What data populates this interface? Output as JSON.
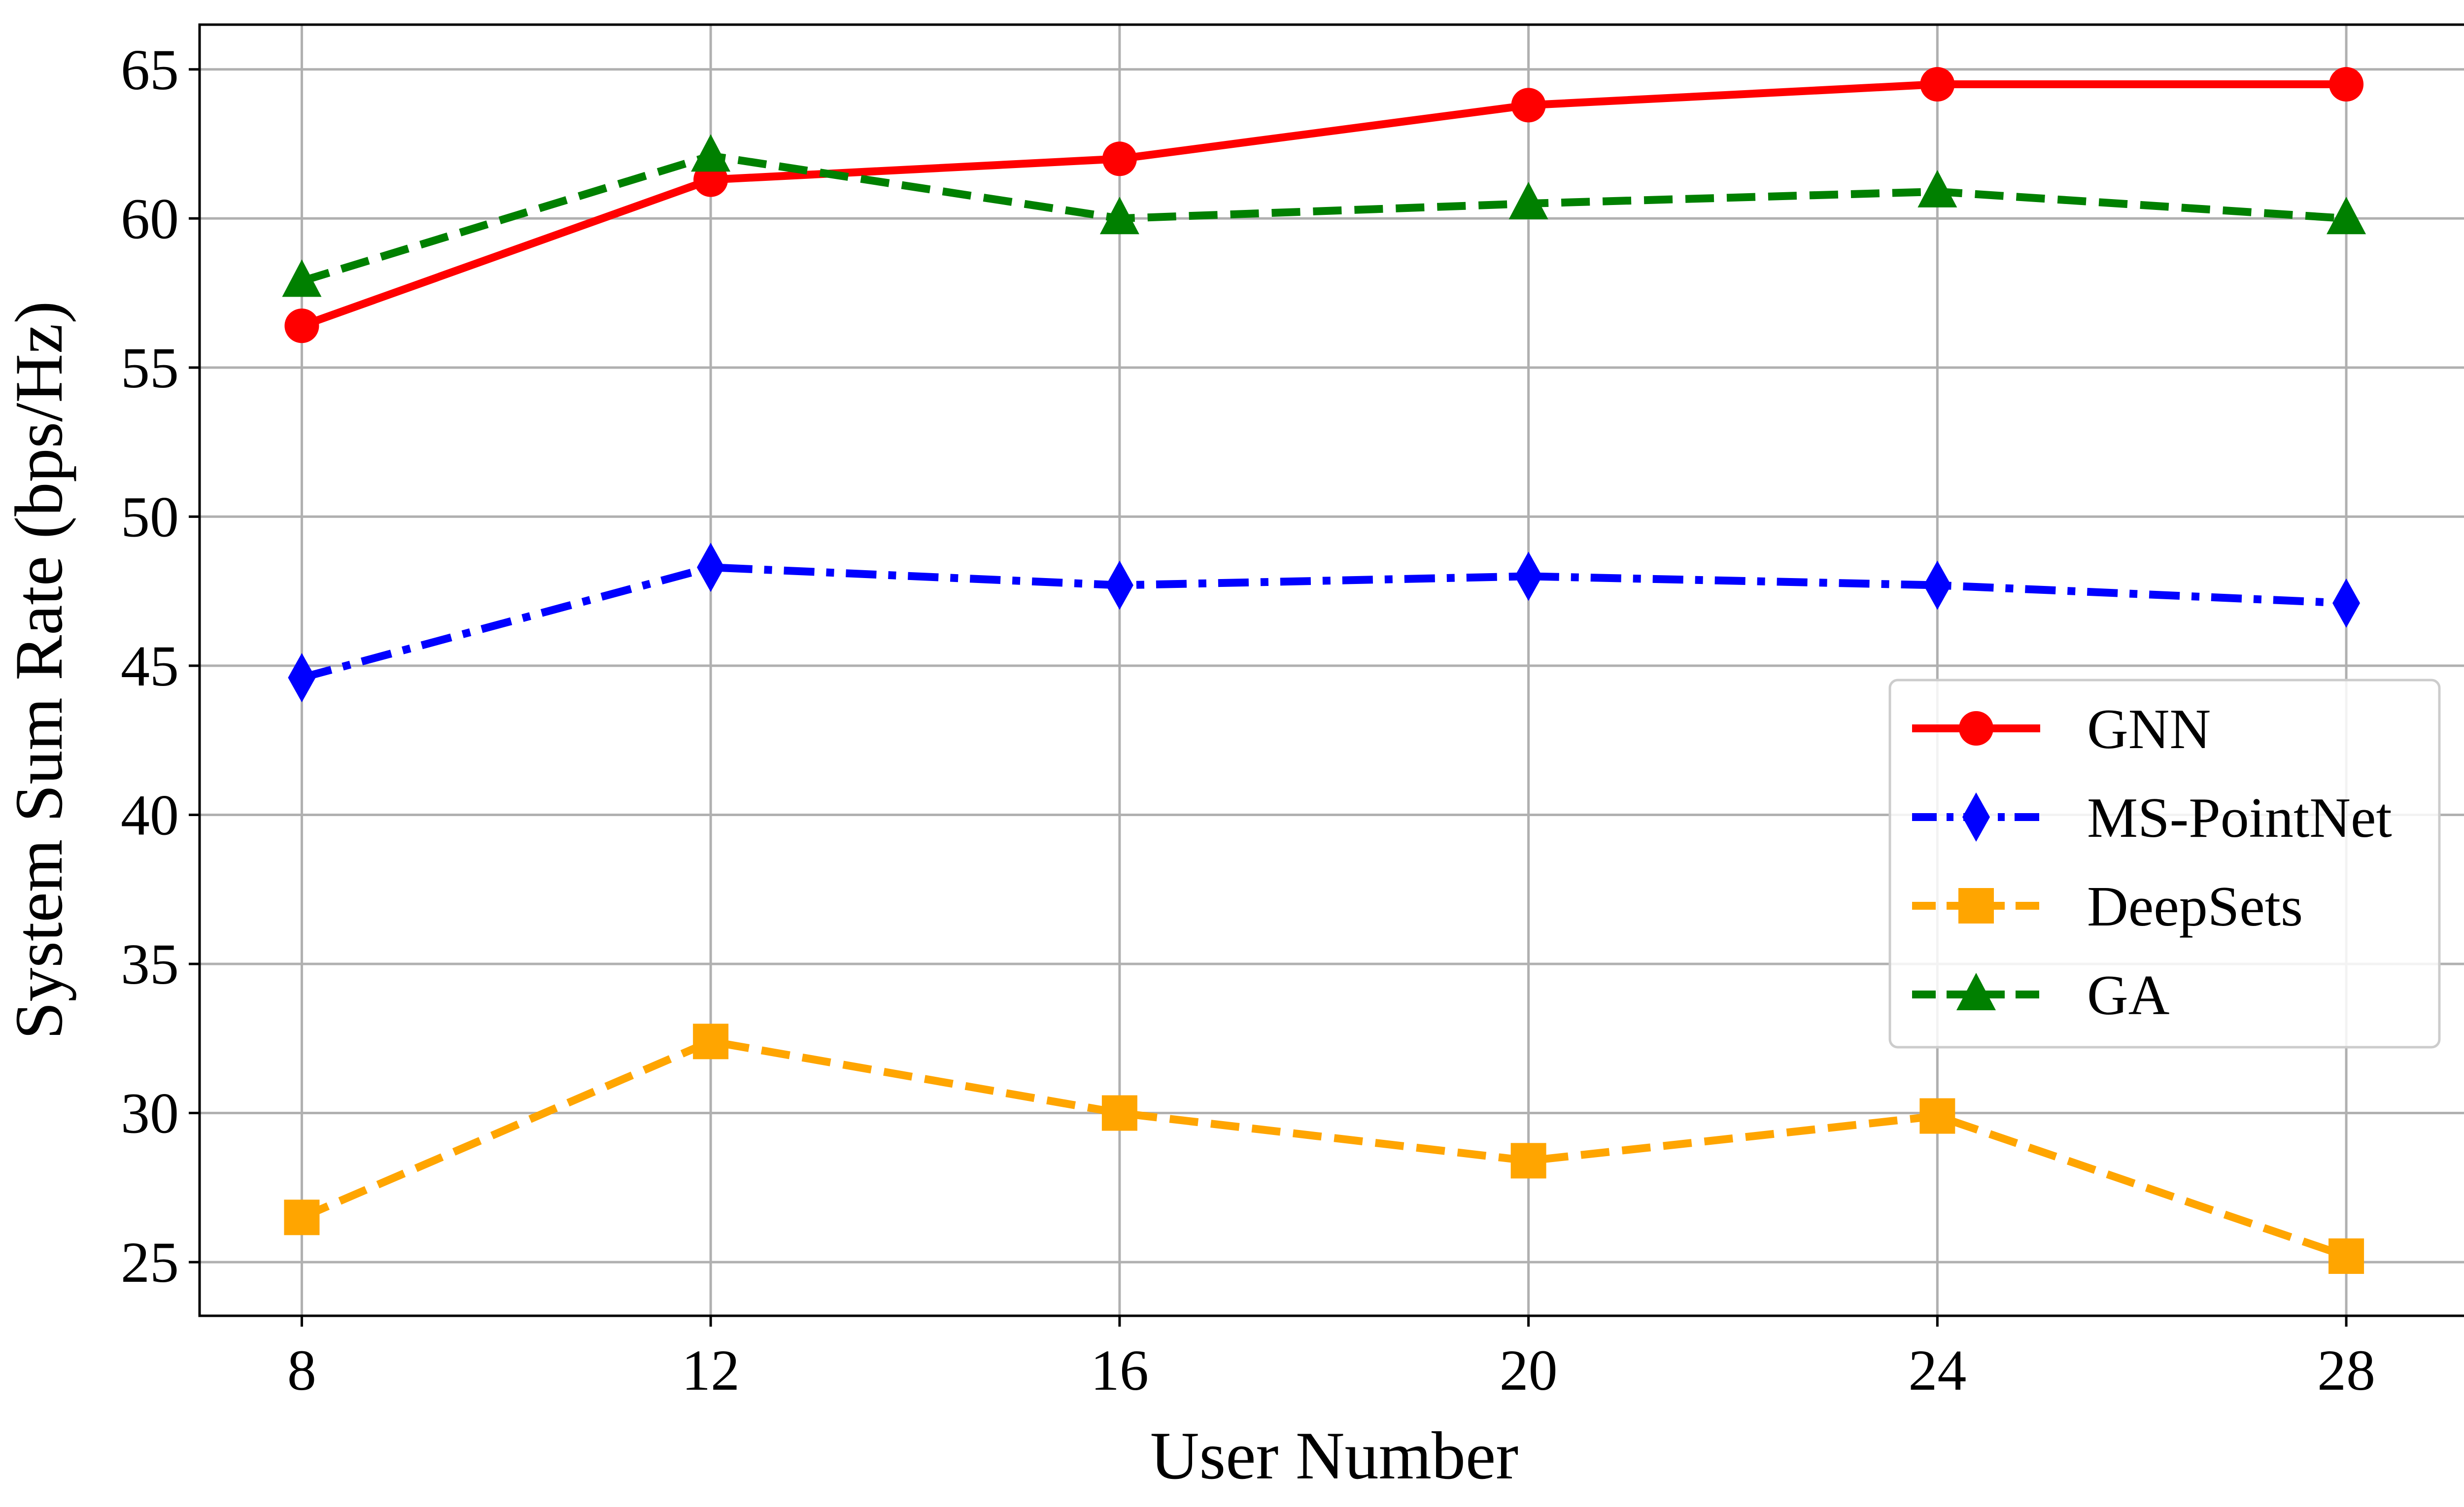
{
  "chart_data": {
    "type": "line",
    "xlabel": "User Number",
    "ylabel": "System Sum Rate (bps/Hz)",
    "x": [
      8,
      12,
      16,
      20,
      24,
      28
    ],
    "xticks": [
      "8",
      "12",
      "16",
      "20",
      "24",
      "28"
    ],
    "yticks": [
      "25",
      "30",
      "35",
      "40",
      "45",
      "50",
      "55",
      "60",
      "65"
    ],
    "xlim": [
      7,
      29.2
    ],
    "ylim": [
      23.2,
      66.5
    ],
    "grid": true,
    "legend_position": "center-right",
    "series": [
      {
        "name": "GNN",
        "values": [
          56.4,
          61.3,
          62.0,
          63.8,
          64.5,
          64.5
        ],
        "color": "#ff0000",
        "marker": "circle",
        "dash": "solid"
      },
      {
        "name": "MS-PointNet",
        "values": [
          44.6,
          48.3,
          47.7,
          48.0,
          47.7,
          47.1
        ],
        "color": "#0000ff",
        "marker": "diamond",
        "dash": "dashdot"
      },
      {
        "name": "DeepSets",
        "values": [
          26.5,
          32.4,
          30.0,
          28.4,
          29.9,
          25.2
        ],
        "color": "#ffa500",
        "marker": "square",
        "dash": "dashed"
      },
      {
        "name": "GA",
        "values": [
          57.9,
          62.1,
          60.0,
          60.5,
          60.9,
          60.0
        ],
        "color": "#008000",
        "marker": "triangle",
        "dash": "dashed"
      }
    ]
  }
}
